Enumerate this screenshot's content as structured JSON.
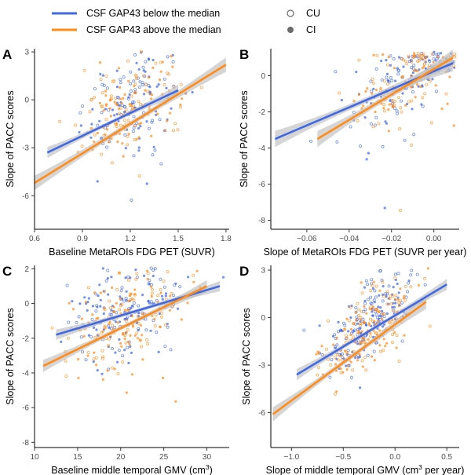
{
  "colors": {
    "below": "#4169E1",
    "above": "#FF8C1A",
    "band": "#BEBEBE",
    "closed": "#6b6b6b",
    "open": "#6b6b6b"
  },
  "legend": {
    "below_label": "CSF GAP43 below the median",
    "above_label": "CSF GAP43 above the median",
    "cu_label": "CU",
    "ci_label": "CI"
  },
  "chart_data": [
    {
      "panel": "A",
      "type": "scatter",
      "xlabel": "Baseline MetaROIs FDG PET (SUVR)",
      "xlabel_sup": "",
      "xlabel_tail": "",
      "ylabel": "Slope of PACC scores",
      "xlim": [
        0.6,
        1.82
      ],
      "ylim": [
        -8.1,
        3.2
      ],
      "xticks": [
        0.6,
        0.9,
        1.2,
        1.5,
        1.8
      ],
      "xtick_labels": [
        "0.6",
        "0.9",
        "1.2",
        "1.5",
        "1.8"
      ],
      "yticks": [
        -6,
        -3,
        0,
        3
      ],
      "ytick_labels": [
        "-6",
        "-3",
        "0",
        "3"
      ],
      "fit_lines": [
        {
          "series": "below",
          "x": [
            0.68,
            1.5
          ],
          "y": [
            -3.3,
            0.6
          ],
          "ci": 0.35
        },
        {
          "series": "above",
          "x": [
            0.6,
            1.8
          ],
          "y": [
            -5.2,
            2.2
          ],
          "ci": 0.45
        }
      ],
      "point_cloud": {
        "x_mean": 1.2,
        "x_sd": 0.15,
        "y_center": -0.3,
        "slope": 4.5,
        "resid_sd": 1.35,
        "n_below": 140,
        "n_above": 160,
        "x_min": 0.68,
        "x_max": 1.78
      }
    },
    {
      "panel": "B",
      "type": "scatter",
      "xlabel": "Slope of MetaROIs FDG PET (SUVR per year)",
      "xlabel_sup": "",
      "xlabel_tail": "",
      "ylabel": "Slope of PACC scores",
      "xlim": [
        -0.077,
        0.012
      ],
      "ylim": [
        -8.5,
        1.5
      ],
      "xticks": [
        -0.06,
        -0.04,
        -0.02,
        0.0
      ],
      "xtick_labels": [
        "−0.06",
        "−0.04",
        "−0.02",
        "0.00"
      ],
      "yticks": [
        -8,
        -6,
        -4,
        -2,
        0
      ],
      "ytick_labels": [
        "-8",
        "-6",
        "-4",
        "-2",
        "0"
      ],
      "fit_lines": [
        {
          "series": "below",
          "x": [
            -0.075,
            0.009
          ],
          "y": [
            -3.5,
            0.7
          ],
          "ci": 0.45
        },
        {
          "series": "above",
          "x": [
            -0.055,
            0.009
          ],
          "y": [
            -3.5,
            1.0
          ],
          "ci": 0.45
        }
      ],
      "point_cloud": {
        "x_mean": -0.012,
        "x_sd": 0.013,
        "y_center": 0.0,
        "slope": 55,
        "resid_sd": 1.1,
        "n_below": 130,
        "n_above": 130,
        "x_min": -0.075,
        "x_max": 0.01
      }
    },
    {
      "panel": "C",
      "type": "scatter",
      "xlabel": "Baseline middle temporal GMV (cm",
      "xlabel_sup": "3",
      "xlabel_tail": ")",
      "ylabel": "Slope of PACC scores",
      "xlim": [
        10,
        32.6
      ],
      "ylim": [
        -8.3,
        2.2
      ],
      "xticks": [
        10,
        15,
        20,
        25,
        30
      ],
      "xtick_labels": [
        "10",
        "15",
        "20",
        "25",
        "30"
      ],
      "yticks": [
        -8,
        -6,
        -4,
        -2,
        0,
        2
      ],
      "ytick_labels": [
        "-8",
        "-6",
        "-4",
        "-2",
        "0",
        "2"
      ],
      "fit_lines": [
        {
          "series": "below",
          "x": [
            12.5,
            31.5
          ],
          "y": [
            -1.8,
            1.0
          ],
          "ci": 0.3
        },
        {
          "series": "above",
          "x": [
            11,
            30
          ],
          "y": [
            -3.6,
            1.0
          ],
          "ci": 0.35
        }
      ],
      "point_cloud": {
        "x_mean": 20.5,
        "x_sd": 3.3,
        "y_center": -0.6,
        "slope": 0.18,
        "resid_sd": 1.3,
        "n_below": 170,
        "n_above": 170,
        "x_min": 10.5,
        "x_max": 32
      }
    },
    {
      "panel": "D",
      "type": "scatter",
      "xlabel": "Slope of middle temporal GMV (cm",
      "xlabel_sup": "3",
      "xlabel_tail": " per year)",
      "ylabel": "Slope of PACC scores",
      "xlim": [
        -1.2,
        0.62
      ],
      "ylim": [
        -8.2,
        3.3
      ],
      "xticks": [
        -1.0,
        -0.5,
        0.0,
        0.5
      ],
      "xtick_labels": [
        "−1.0",
        "−0.5",
        "0.0",
        "0.5"
      ],
      "yticks": [
        -6,
        -3,
        0,
        3
      ],
      "ytick_labels": [
        "-6",
        "-3",
        "0",
        "3"
      ],
      "fit_lines": [
        {
          "series": "below",
          "x": [
            -0.95,
            0.5
          ],
          "y": [
            -3.6,
            2.1
          ],
          "ci": 0.35
        },
        {
          "series": "above",
          "x": [
            -1.18,
            0.3
          ],
          "y": [
            -6.1,
            1.0
          ],
          "ci": 0.45
        }
      ],
      "point_cloud": {
        "x_mean": -0.25,
        "x_sd": 0.22,
        "y_center": -0.4,
        "slope": 4.8,
        "resid_sd": 1.15,
        "n_below": 190,
        "n_above": 190,
        "x_min": -1.15,
        "x_max": 0.55
      }
    }
  ]
}
